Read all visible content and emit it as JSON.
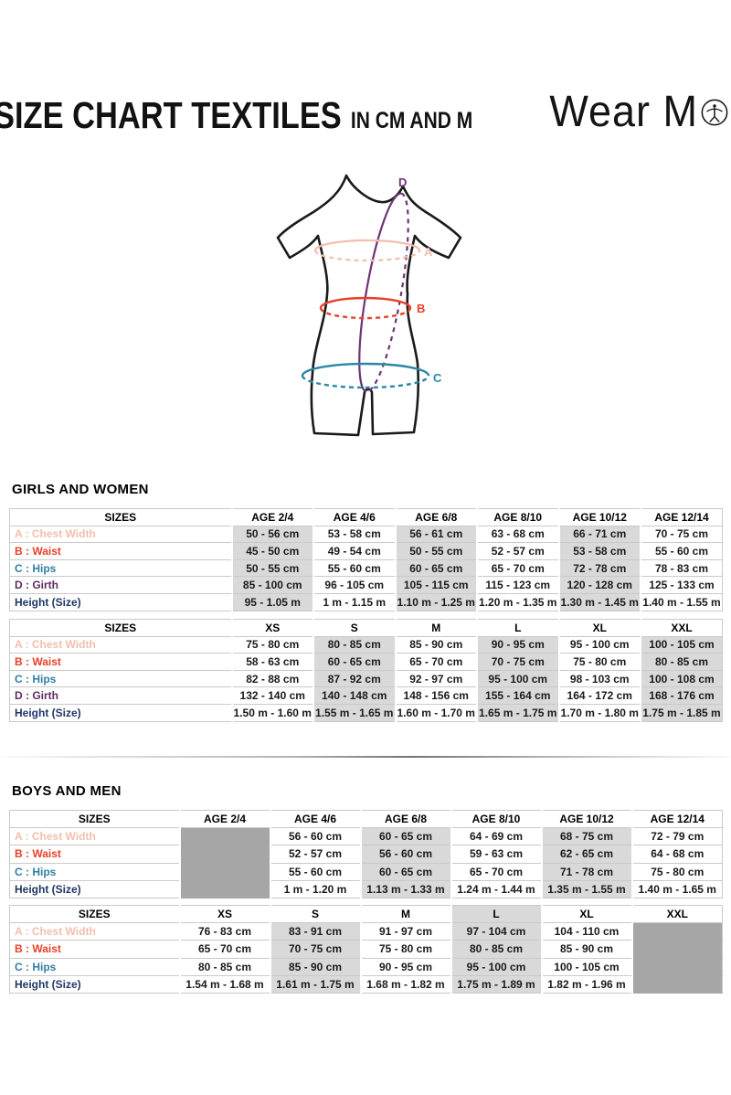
{
  "page": {
    "title": "SIZE CHART TEXTILES",
    "subtitle": "IN CM AND M",
    "brand_prefix": "Wear M",
    "brand_suffix": "i",
    "brand_full": "Wear Moi"
  },
  "diagram": {
    "labels": {
      "chest": "A",
      "waist": "B",
      "hips": "C",
      "girth": "D"
    },
    "colors": {
      "outline": "#1A1A1A",
      "chest": "#F2BFAC",
      "waist": "#E8402A",
      "hips": "#2B87A5",
      "girth": "#6C3474"
    }
  },
  "table_styles": {
    "shade": "#D9D9D9",
    "block": "#A6A6A6",
    "border": "#C9C9C9"
  },
  "sections": [
    {
      "heading": "GIRLS AND WOMEN",
      "tables": [
        {
          "name": "girls-ages",
          "columns": [
            "SIZES",
            "AGE 2/4",
            "AGE 4/6",
            "AGE 6/8",
            "AGE 8/10",
            "AGE 10/12",
            "AGE 12/14"
          ],
          "shaded_columns": [
            1,
            3,
            5
          ],
          "shaded_header_columns": [],
          "blocked_columns": [],
          "rows": [
            {
              "label": "A : Chest Width",
              "color": "#F2BFAC",
              "values": [
                "50 - 56 cm",
                "53 - 58 cm",
                "56 - 61 cm",
                "63 - 68 cm",
                "66 - 71 cm",
                "70 - 75 cm"
              ]
            },
            {
              "label": "B : Waist",
              "color": "#E8402A",
              "values": [
                "45 - 50 cm",
                "49 - 54 cm",
                "50 - 55 cm",
                "52 - 57 cm",
                "53 - 58 cm",
                "55 - 60 cm"
              ]
            },
            {
              "label": "C : Hips",
              "color": "#2E7F9F",
              "values": [
                "50 - 55 cm",
                "55 - 60 cm",
                "60 - 65 cm",
                "65 - 70 cm",
                "72 - 78 cm",
                "78 - 83 cm"
              ]
            },
            {
              "label": "D : Girth",
              "color": "#5F2B5F",
              "values": [
                "85 - 100 cm",
                "96 - 105 cm",
                "105 - 115 cm",
                "115 - 123 cm",
                "120 - 128 cm",
                "125 - 133 cm"
              ]
            },
            {
              "label": "Height (Size)",
              "color": "#1F3864",
              "values": [
                "95 - 1.05 m",
                "1 m - 1.15 m",
                "1.10 m - 1.25 m",
                "1.20 m - 1.35 m",
                "1.30 m - 1.45 m",
                "1.40 m - 1.55 m"
              ]
            }
          ]
        },
        {
          "name": "women-sizes",
          "columns": [
            "SIZES",
            "XS",
            "S",
            "M",
            "L",
            "XL",
            "XXL"
          ],
          "shaded_columns": [
            2,
            4,
            6
          ],
          "shaded_header_columns": [],
          "blocked_columns": [],
          "rows": [
            {
              "label": "A : Chest Width",
              "color": "#F2BFAC",
              "values": [
                "75 - 80 cm",
                "80 - 85 cm",
                "85 - 90 cm",
                "90 - 95 cm",
                "95 - 100 cm",
                "100 - 105 cm"
              ]
            },
            {
              "label": "B : Waist",
              "color": "#E8402A",
              "values": [
                "58 - 63 cm",
                "60 - 65 cm",
                "65 - 70 cm",
                "70 - 75 cm",
                "75 - 80 cm",
                "80 - 85 cm"
              ]
            },
            {
              "label": "C : Hips",
              "color": "#2E7F9F",
              "values": [
                "82 - 88 cm",
                "87 - 92 cm",
                "92 - 97 cm",
                "95 - 100 cm",
                "98 - 103 cm",
                "100 - 108 cm"
              ]
            },
            {
              "label": "D : Girth",
              "color": "#5F2B5F",
              "values": [
                "132 - 140 cm",
                "140 - 148 cm",
                "148 - 156 cm",
                "155 - 164 cm",
                "164 - 172 cm",
                "168 - 176 cm"
              ]
            },
            {
              "label": "Height (Size)",
              "color": "#1F3864",
              "values": [
                "1.50 m - 1.60 m",
                "1.55 m - 1.65 m",
                "1.60 m - 1.70 m",
                "1.65 m - 1.75 m",
                "1.70 m - 1.80 m",
                "1.75 m - 1.85 m"
              ]
            }
          ]
        }
      ]
    },
    {
      "heading": "BOYS AND MEN",
      "tables": [
        {
          "name": "boys-ages",
          "columns": [
            "SIZES",
            "AGE 2/4",
            "AGE 4/6",
            "AGE 6/8",
            "AGE 8/10",
            "AGE 10/12",
            "AGE 12/14"
          ],
          "shaded_columns": [
            3,
            5
          ],
          "shaded_header_columns": [],
          "blocked_columns": [
            1
          ],
          "rows": [
            {
              "label": "A : Chest Width",
              "color": "#F2BFAC",
              "values": [
                "",
                "56 - 60 cm",
                "60 - 65 cm",
                "64 - 69 cm",
                "68 - 75 cm",
                "72 - 79 cm"
              ]
            },
            {
              "label": "B : Waist",
              "color": "#E8402A",
              "values": [
                "",
                "52 - 57 cm",
                "56 - 60 cm",
                "59 - 63 cm",
                "62 - 65 cm",
                "64 - 68 cm"
              ]
            },
            {
              "label": "C : Hips",
              "color": "#2E7F9F",
              "values": [
                "",
                "55 - 60 cm",
                "60 - 65 cm",
                "65 - 70 cm",
                "71 - 78 cm",
                "75 - 80 cm"
              ]
            },
            {
              "label": "Height (Size)",
              "color": "#1F3864",
              "values": [
                "",
                "1 m - 1.20 m",
                "1.13 m - 1.33 m",
                "1.24 m - 1.44 m",
                "1.35 m - 1.55 m",
                "1.40 m - 1.65 m"
              ]
            }
          ]
        },
        {
          "name": "men-sizes",
          "columns": [
            "SIZES",
            "XS",
            "S",
            "M",
            "L",
            "XL",
            "XXL"
          ],
          "shaded_columns": [
            2,
            4
          ],
          "shaded_header_columns": [
            4
          ],
          "blocked_columns": [
            6
          ],
          "rows": [
            {
              "label": "A : Chest Width",
              "color": "#F2BFAC",
              "values": [
                "76 - 83 cm",
                "83 - 91 cm",
                "91 - 97 cm",
                "97 - 104 cm",
                "104 - 110 cm",
                ""
              ]
            },
            {
              "label": "B : Waist",
              "color": "#E8402A",
              "values": [
                "65 - 70 cm",
                "70 - 75 cm",
                "75 - 80 cm",
                "80 - 85 cm",
                "85 - 90 cm",
                ""
              ]
            },
            {
              "label": "C : Hips",
              "color": "#2E7F9F",
              "values": [
                "80 - 85 cm",
                "85 - 90 cm",
                "90 - 95 cm",
                "95 - 100 cm",
                "100 - 105 cm",
                ""
              ]
            },
            {
              "label": "Height (Size)",
              "color": "#1F3864",
              "values": [
                "1.54 m - 1.68 m",
                "1.61 m - 1.75 m",
                "1.68 m - 1.82 m",
                "1.75 m - 1.89 m",
                "1.82 m - 1.96 m",
                ""
              ]
            }
          ]
        }
      ]
    }
  ]
}
